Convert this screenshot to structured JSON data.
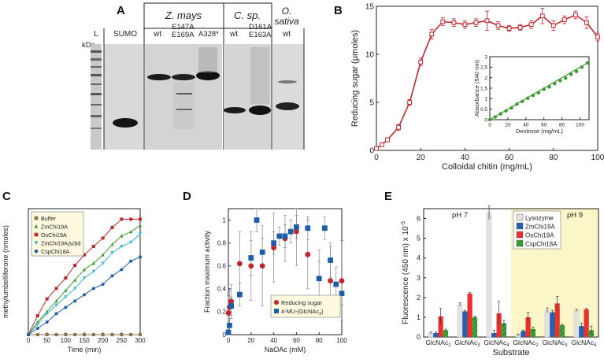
{
  "panels": {
    "A": {
      "letter": "A",
      "kda": "kDa",
      "header_zmays": "Z. mays",
      "header_csp": "C. sp.",
      "header_osativa_1": "O.",
      "header_osativa_2": "sativa",
      "lane_labels": [
        "L",
        "SUMO",
        "wt",
        "E147A E169A",
        "A328*",
        "wt",
        "D161A E163A",
        "wt"
      ]
    },
    "B": {
      "letter": "B",
      "inset": {
        "xlabel": "Dextrose (mg/mL)",
        "ylabel": "Absorbance (540 nm)"
      }
    },
    "C": {
      "letter": "C"
    },
    "D": {
      "letter": "D"
    },
    "E": {
      "letter": "E",
      "ph7": "pH 7",
      "ph9": "pH 9",
      "ph9_shade_color": "#fbf6c8"
    }
  },
  "chart_data": [
    {
      "id": "B",
      "type": "line",
      "xlabel": "Colloidal chitin (mg/mL)",
      "ylabel": "Reducing sugar (µmoles)",
      "xlim": [
        0,
        100
      ],
      "ylim": [
        0,
        15
      ],
      "xticks": [
        0,
        20,
        40,
        60,
        80,
        100
      ],
      "yticks": [
        0,
        5,
        10,
        15
      ],
      "color": "#c0262d",
      "series": [
        {
          "x": [
            0,
            2.5,
            5,
            10,
            15,
            20,
            25,
            30,
            35,
            40,
            45,
            50,
            55,
            60,
            65,
            70,
            75,
            80,
            85,
            90,
            95,
            100
          ],
          "y": [
            0.2,
            0.6,
            1.1,
            2.4,
            5.0,
            9.2,
            12.1,
            13.4,
            13.3,
            13.1,
            13.3,
            13.5,
            13.0,
            12.7,
            12.8,
            13.1,
            14.0,
            13.0,
            13.6,
            14.1,
            13.3,
            11.8
          ],
          "err": [
            0.15,
            0.2,
            0.2,
            0.3,
            0.3,
            0.4,
            0.5,
            0.4,
            0.4,
            0.4,
            0.4,
            1.0,
            0.4,
            0.3,
            0.3,
            0.4,
            0.8,
            0.5,
            0.4,
            0.4,
            0.6,
            0.4
          ]
        }
      ]
    },
    {
      "id": "B-inset",
      "type": "line",
      "xlabel": "Dextrose (mg/mL)",
      "ylabel": "Absorbance (540 nm)",
      "xlim": [
        0,
        110
      ],
      "ylim": [
        0,
        3
      ],
      "xticks": [
        0,
        20,
        40,
        60,
        80,
        100
      ],
      "yticks": [
        0,
        0.5,
        1,
        1.5,
        2,
        2.5,
        3
      ],
      "ytick_labels": [
        "0",
        "0.5",
        "1",
        "1.5",
        "2",
        "2.5",
        "3"
      ],
      "color": "#3a9a2e",
      "series": [
        {
          "x": [
            0,
            6,
            12,
            18,
            24,
            30,
            36,
            42,
            48,
            54,
            60,
            66,
            72,
            78,
            84,
            90,
            96,
            102,
            108
          ],
          "y": [
            0.0,
            0.13,
            0.28,
            0.42,
            0.56,
            0.74,
            0.87,
            1.02,
            1.16,
            1.28,
            1.45,
            1.56,
            1.72,
            1.86,
            1.98,
            2.16,
            2.3,
            2.5,
            2.7
          ]
        }
      ]
    },
    {
      "id": "C",
      "type": "line",
      "xlabel": "Time (min)",
      "ylabel": "methylumbelliferone (nmoles)",
      "xlim": [
        0,
        300
      ],
      "ylim": [
        0,
        0.6
      ],
      "xticks": [
        0,
        50,
        100,
        150,
        200,
        250,
        300
      ],
      "series": [
        {
          "name": "Buffer",
          "color": "#8b6f4e",
          "marker": "square",
          "x": [
            0,
            25,
            50,
            75,
            100,
            125,
            150,
            175,
            200,
            225,
            250,
            275,
            300
          ],
          "y": [
            0,
            0,
            0,
            0,
            0,
            0,
            0,
            0,
            0,
            0,
            0,
            0,
            0
          ]
        },
        {
          "name": "ZmChi19A",
          "color": "#3e9a2e",
          "marker": "triangle",
          "x": [
            0,
            25,
            50,
            75,
            100,
            125,
            150,
            175,
            200,
            225,
            250,
            275,
            300
          ],
          "y": [
            0,
            0.06,
            0.11,
            0.16,
            0.21,
            0.26,
            0.31,
            0.34,
            0.38,
            0.43,
            0.47,
            0.49,
            0.52
          ]
        },
        {
          "name": "OsChi19A",
          "color": "#c0262d",
          "marker": "square",
          "x": [
            0,
            25,
            50,
            75,
            100,
            125,
            150,
            175,
            200,
            225,
            250,
            275,
            300
          ],
          "y": [
            0,
            0.09,
            0.17,
            0.22,
            0.27,
            0.33,
            0.38,
            0.42,
            0.46,
            0.51,
            0.55,
            0.55,
            0.55
          ]
        },
        {
          "name": "ZmChi19AΔcbd",
          "color": "#37b7c9",
          "marker": "triangle-down",
          "x": [
            0,
            25,
            50,
            75,
            100,
            125,
            150,
            175,
            200,
            225,
            250,
            275,
            300
          ],
          "y": [
            0,
            0.05,
            0.1,
            0.14,
            0.18,
            0.22,
            0.27,
            0.3,
            0.34,
            0.39,
            0.42,
            0.44,
            0.48
          ]
        },
        {
          "name": "CspChi18A",
          "color": "#1f5da8",
          "marker": "circle",
          "x": [
            0,
            25,
            50,
            75,
            100,
            125,
            150,
            175,
            200,
            225,
            250,
            275,
            300
          ],
          "y": [
            0,
            0.03,
            0.06,
            0.1,
            0.13,
            0.16,
            0.19,
            0.22,
            0.24,
            0.28,
            0.31,
            0.35,
            0.37
          ]
        }
      ],
      "legend": "top-left"
    },
    {
      "id": "D",
      "type": "scatter",
      "xlabel": "NaOAc (mM)",
      "ylabel": "Fraction maximum activity",
      "xlim": [
        0,
        100
      ],
      "ylim": [
        0,
        1.1
      ],
      "xticks": [
        0,
        20,
        40,
        60,
        80,
        100
      ],
      "yticks": [
        0,
        0.2,
        0.4,
        0.6,
        0.8,
        1
      ],
      "ytick_labels": [
        "0",
        "0.2",
        "0.4",
        "0.6",
        "0.8",
        "1"
      ],
      "series": [
        {
          "name": "Reducing sugar",
          "color": "#c0262d",
          "marker": "circle",
          "x": [
            0,
            1,
            2.5,
            10,
            20,
            30,
            40,
            50,
            60,
            70,
            80,
            90,
            100
          ],
          "y": [
            0.19,
            0.24,
            0.29,
            0.62,
            0.6,
            0.6,
            0.76,
            0.84,
            0.9,
            0.7,
            0.49,
            0.47,
            0.47
          ],
          "err": [
            0.15,
            0.15,
            0.15,
            0.28,
            0.3,
            0.35,
            0.3,
            0.2,
            0.3,
            0.3,
            0.25,
            0.3,
            0.35
          ]
        },
        {
          "name": "4-MU-(GlcNAc3)",
          "color": "#1f5da8",
          "marker": "square",
          "x": [
            0,
            1,
            2.5,
            10,
            20,
            25,
            30,
            40,
            45,
            50,
            55,
            60,
            70,
            80,
            85,
            90,
            95,
            100
          ],
          "y": [
            0.02,
            0.08,
            0.25,
            0.35,
            0.67,
            1.0,
            0.72,
            0.8,
            0.86,
            0.86,
            0.9,
            0.94,
            0.93,
            0.49,
            0.93,
            0.65,
            0.44,
            0.36
          ],
          "err": [
            0.02,
            0.05,
            0.08,
            0.1,
            0.15,
            0.1,
            0.12,
            0.1,
            0.08,
            0.1,
            0.1,
            0.1,
            0.1,
            0.15,
            0.1,
            0.15,
            0.15,
            0.1
          ]
        }
      ],
      "legend": "bottom-right"
    },
    {
      "id": "E",
      "type": "bar",
      "xlabel": "Substrate",
      "ylabel": "Fluorescence (450 nm) x 10-3",
      "ylim": [
        0,
        6.5
      ],
      "yticks": [
        0,
        1,
        2,
        3,
        4,
        5,
        6
      ],
      "groups": [
        {
          "label": "GlcNAc",
          "sub": "2",
          "condition": "pH 7"
        },
        {
          "label": "GlcNAc",
          "sub": "3",
          "condition": "pH 7"
        },
        {
          "label": "GlcNAc",
          "sub": "4",
          "condition": "pH 7"
        },
        {
          "label": "GlcNAc",
          "sub": "2",
          "condition": "pH 9"
        },
        {
          "label": "GlcNAc",
          "sub": "3",
          "condition": "pH 9"
        },
        {
          "label": "GlcNAc",
          "sub": "4",
          "condition": "pH 9"
        }
      ],
      "series": [
        {
          "name": "Lysozyme",
          "color": "#e2e2e2",
          "values": [
            0.2,
            1.65,
            6.3,
            0.1,
            1.35,
            1.35
          ],
          "err": [
            0.05,
            0.08,
            0.35,
            0.05,
            0.12,
            0.05
          ]
        },
        {
          "name": "ZmChi19A",
          "color": "#2762ae",
          "values": [
            0.2,
            1.3,
            0.2,
            0.3,
            1.25,
            0.55
          ],
          "err": [
            0.05,
            0.05,
            0.15,
            0.05,
            0.1,
            0.15
          ]
        },
        {
          "name": "OsChi19A",
          "color": "#e8322d",
          "values": [
            1.05,
            2.2,
            1.2,
            1.0,
            1.7,
            1.4
          ],
          "err": [
            0.4,
            0.05,
            0.6,
            0.25,
            0.35,
            0.05
          ]
        },
        {
          "name": "CspChi18A",
          "color": "#3ea83a",
          "hatch": true,
          "values": [
            0.35,
            1.0,
            0.7,
            0.4,
            0.6,
            0.35
          ],
          "err": [
            0.05,
            0.05,
            0.15,
            0.1,
            0.05,
            0.2
          ]
        }
      ],
      "legend": "top-center"
    }
  ]
}
